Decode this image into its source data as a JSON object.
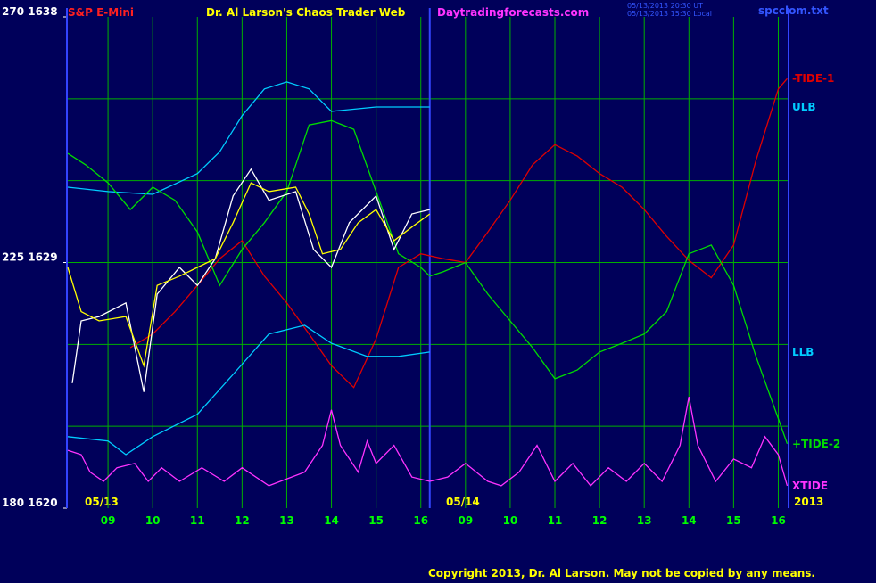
{
  "chart_data": {
    "type": "line",
    "titles": [
      "S&P E-Mini",
      "Dr. Al Larson's Chaos Trader Web",
      "Daytradingforecasts.com"
    ],
    "timestamps": [
      "05/13/2013 20:30 UT",
      "05/13/2013 15:30 Local"
    ],
    "file_name": "spcclom.txt",
    "date_labels": [
      "05/13",
      "05/14",
      "2013"
    ],
    "copyright": "Copyright 2013, Dr. Al Larson. May not be copied by any means.",
    "xlim": [
      8.08,
      24.23
    ],
    "ylim": [
      180,
      270
    ],
    "xticks": [
      {
        "value": 9,
        "label": "09"
      },
      10,
      11,
      12,
      13,
      14,
      15,
      16,
      {
        "value": 17,
        "label": "09"
      },
      {
        "value": 18,
        "label": "10"
      },
      {
        "value": 19,
        "label": "11"
      },
      {
        "value": 20,
        "label": "12"
      },
      {
        "value": 21,
        "label": "13"
      },
      {
        "value": 22,
        "label": "14"
      },
      {
        "value": 23,
        "label": "15"
      },
      {
        "value": 24,
        "label": "16"
      }
    ],
    "yticks": [
      {
        "value": 180,
        "label": "180 1620"
      },
      {
        "value": 225,
        "label": "225 1629"
      },
      {
        "value": 270,
        "label": "270 1638"
      }
    ],
    "ygrid": [
      195,
      210,
      225,
      240,
      255
    ],
    "day_break": 16.2,
    "grid_color": "#00b000",
    "series": [
      {
        "name": "-TIDE-1",
        "color": "#e00000",
        "x": [
          9.5,
          10,
          10.5,
          11,
          11.5,
          12,
          12.5,
          13,
          13.5,
          14,
          14.5,
          15,
          15.5,
          16,
          16.5,
          17,
          17.5,
          18,
          18.5,
          19,
          19.5,
          20,
          20.5,
          21,
          21.5,
          22,
          22.5,
          23,
          23.5,
          24,
          24.2
        ],
        "values": [
          209.4,
          211.9,
          216,
          220.8,
          225.7,
          229,
          222.5,
          217.6,
          211.9,
          206.1,
          202.1,
          211,
          224.1,
          226.6,
          225.7,
          225,
          230.6,
          236.4,
          242.9,
          246.6,
          244.5,
          241.3,
          238.8,
          234.7,
          229.8,
          225.4,
          222.2,
          228.2,
          243.7,
          256.8,
          258.7
        ]
      },
      {
        "name": "ULB",
        "color": "#00ccff",
        "x": [
          8.1,
          9,
          10,
          11,
          11.5,
          12,
          12.5,
          13,
          13.5,
          14,
          15,
          16,
          16.2
        ],
        "values": [
          238.8,
          238,
          237.5,
          241.3,
          245.3,
          251.9,
          256.8,
          258.1,
          256.8,
          252.7,
          253.5,
          253.5,
          253.5
        ]
      },
      {
        "name": "LLB",
        "color": "#00ccff",
        "x": [
          8.1,
          9,
          9.4,
          10,
          11,
          11.8,
          12.6,
          13.4,
          14,
          14.8,
          15.5,
          16.2
        ],
        "values": [
          193.1,
          192.3,
          189.8,
          193.1,
          197.2,
          204.5,
          211.9,
          213.5,
          210.2,
          207.8,
          207.8,
          208.6
        ]
      },
      {
        "name": "+TIDE-2",
        "color": "#00dd00",
        "x": [
          8.1,
          8.5,
          9,
          9.5,
          10,
          10.5,
          11,
          11.5,
          12,
          12.5,
          13,
          13.5,
          14,
          14.5,
          15,
          15.5,
          16,
          16.2,
          16.5,
          17,
          17.5,
          18,
          18.5,
          19,
          19.5,
          20,
          20.5,
          21,
          21.5,
          22,
          22.5,
          23,
          23.5,
          24,
          24.2
        ],
        "values": [
          245,
          242.9,
          239.6,
          234.7,
          238.8,
          236.4,
          230.6,
          220.8,
          227.4,
          232.3,
          238,
          250.2,
          251,
          249.4,
          238,
          226.6,
          224.1,
          222.5,
          223.3,
          225,
          219.2,
          214.3,
          209.4,
          203.7,
          205.3,
          208.6,
          210.2,
          211.9,
          216,
          226.6,
          228.2,
          220.8,
          207.8,
          196.4,
          191.8
        ]
      },
      {
        "name": "XTIDE",
        "color": "#ff33ff",
        "x": [
          8.1,
          8.4,
          8.6,
          8.9,
          9.2,
          9.6,
          9.9,
          10.2,
          10.6,
          11.1,
          11.6,
          12,
          12.6,
          13.4,
          13.8,
          14,
          14.2,
          14.6,
          14.8,
          15,
          15.4,
          15.8,
          16.2,
          16.6,
          17,
          17.5,
          17.8,
          18.2,
          18.6,
          19,
          19.4,
          19.8,
          20.2,
          20.6,
          21,
          21.4,
          21.8,
          22,
          22.2,
          22.6,
          23,
          23.4,
          23.7,
          24,
          24.2
        ],
        "values": [
          190.6,
          189.8,
          186.6,
          184.9,
          187.4,
          188.2,
          184.9,
          187.4,
          184.9,
          187.4,
          184.9,
          187.4,
          184.1,
          186.6,
          191.5,
          198,
          191.5,
          186.6,
          192.3,
          188.2,
          191.5,
          185.7,
          184.9,
          185.7,
          188.2,
          184.9,
          184.1,
          186.6,
          191.5,
          184.9,
          188.2,
          184.1,
          187.4,
          184.9,
          188.2,
          184.9,
          191.5,
          200.4,
          191.5,
          184.9,
          189,
          187.4,
          193.1,
          189.8,
          184.1
        ]
      },
      {
        "color": "#ffffff",
        "x": [
          8.2,
          8.4,
          8.8,
          9.4,
          9.8,
          10.1,
          10.6,
          11,
          11.4,
          11.8,
          12.2,
          12.6,
          13.2,
          13.6,
          14,
          14.4,
          15,
          15.4,
          15.8,
          16.2
        ],
        "values": [
          202.9,
          214.3,
          215.1,
          217.6,
          201.3,
          219.2,
          224.1,
          220.8,
          225.7,
          237.2,
          242.1,
          236.4,
          238,
          227.4,
          224.1,
          232.3,
          237.2,
          227.4,
          233.9,
          234.7
        ]
      },
      {
        "color": "#ffff00",
        "x": [
          8.1,
          8.4,
          8.8,
          9.4,
          9.8,
          10.1,
          10.6,
          11,
          11.4,
          11.8,
          12.2,
          12.6,
          13.2,
          13.5,
          13.8,
          14.2,
          14.6,
          15,
          15.4,
          15.8,
          16.2
        ],
        "values": [
          224.1,
          216,
          214.3,
          215.1,
          206.1,
          220.8,
          222.5,
          224.1,
          225.7,
          232.3,
          239.6,
          238,
          238.8,
          233.9,
          226.6,
          227.4,
          232.3,
          234.7,
          229,
          231.5,
          233.9
        ]
      }
    ]
  }
}
